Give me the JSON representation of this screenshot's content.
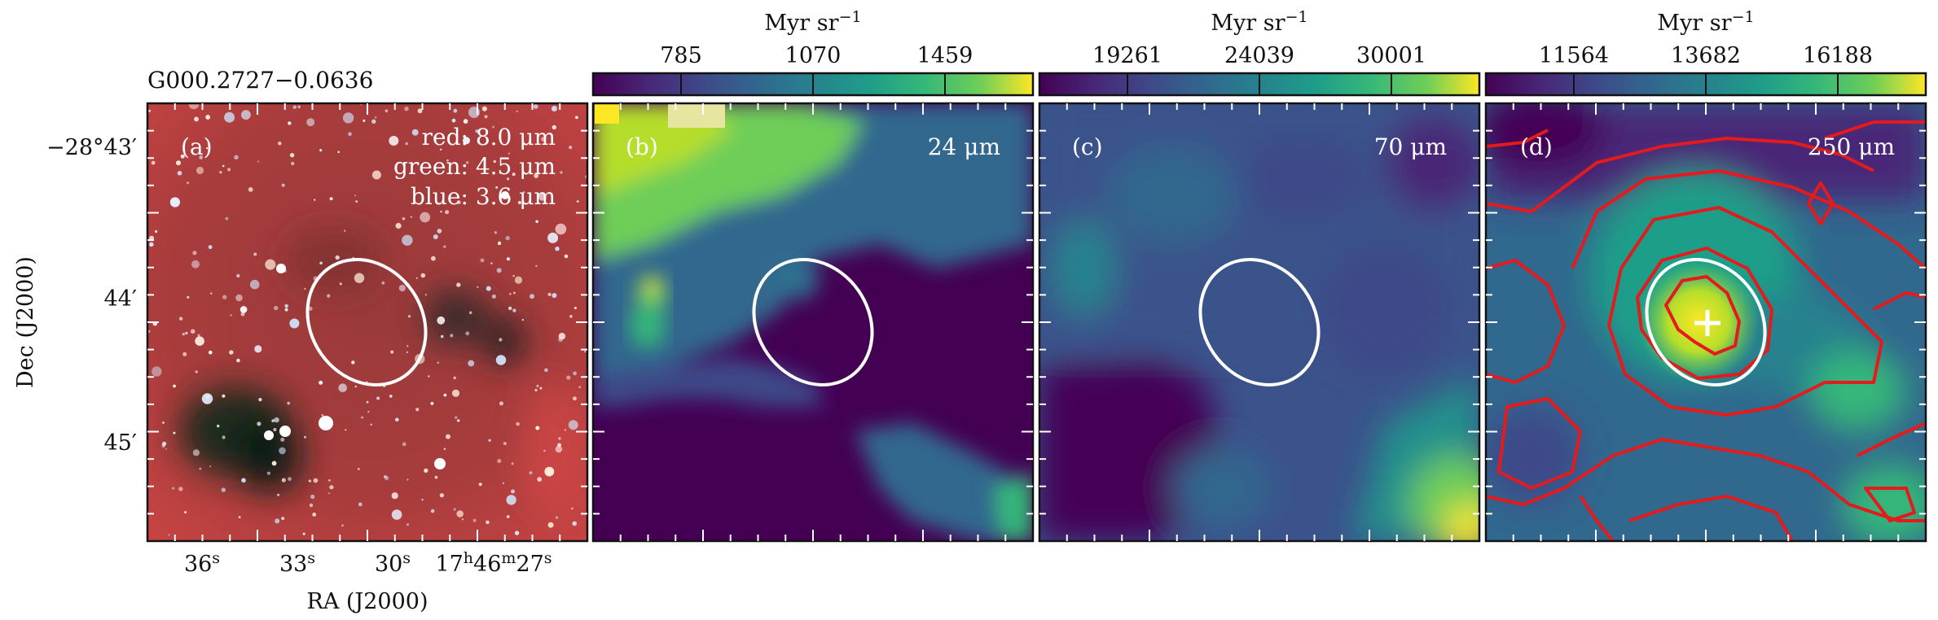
{
  "figure": {
    "source_name": "G000.2727−0.0636",
    "axes": {
      "xlabel": "RA (J2000)",
      "ylabel": "Dec (J2000)",
      "ra_ticks": [
        {
          "base": "36",
          "sup": "s"
        },
        {
          "base": "33",
          "sup": "s"
        },
        {
          "base": "30",
          "sup": "s"
        },
        {
          "base": "17",
          "sup": "h",
          "base2": "46",
          "sup2": "m",
          "base3": "27",
          "sup3": "s"
        }
      ],
      "dec_ticks": [
        "−28°43′",
        "44′",
        "45′"
      ]
    },
    "panels": [
      {
        "id": "a",
        "label": "(a)",
        "rgb_legend": [
          "red: 8.0 μm",
          "green: 4.5 μm",
          "blue: 3.6 μm"
        ]
      },
      {
        "id": "b",
        "label": "(b)",
        "band": "24 μm",
        "colorbar": {
          "unit": "Myr sr",
          "unit_exp": "−1",
          "ticks": [
            "785",
            "1070",
            "1459"
          ]
        }
      },
      {
        "id": "c",
        "label": "(c)",
        "band": "70 μm",
        "colorbar": {
          "unit": "Myr sr",
          "unit_exp": "−1",
          "ticks": [
            "19261",
            "24039",
            "30001"
          ]
        }
      },
      {
        "id": "d",
        "label": "(d)",
        "band": "250 μm",
        "colorbar": {
          "unit": "Myr sr",
          "unit_exp": "−1",
          "ticks": [
            "11564",
            "13682",
            "16188"
          ]
        }
      }
    ]
  },
  "colors": {
    "viridis_dark": "#440154",
    "viridis_mid": "#21918c",
    "viridis_light": "#fde725",
    "contour": "#e41a1c",
    "ellipse": "#ffffff"
  }
}
